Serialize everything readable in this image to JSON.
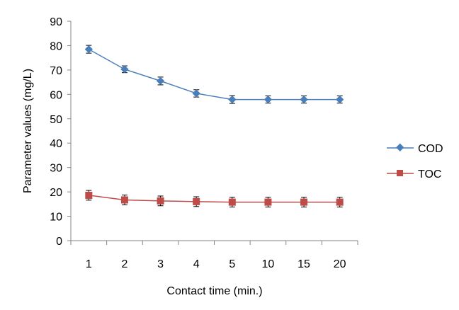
{
  "chart_data": {
    "type": "line",
    "categories": [
      "1",
      "2",
      "3",
      "4",
      "5",
      "10",
      "15",
      "20"
    ],
    "series": [
      {
        "name": "COD",
        "values": [
          78.5,
          70.3,
          65.5,
          60.4,
          57.9,
          57.9,
          57.9,
          57.9
        ],
        "error": [
          1.6,
          1.4,
          1.6,
          1.5,
          1.6,
          1.5,
          1.5,
          1.5
        ],
        "color": "#4a7ebb",
        "marker": "diamond"
      },
      {
        "name": "TOC",
        "values": [
          18.6,
          16.7,
          16.3,
          16.0,
          15.8,
          15.8,
          15.8,
          15.8
        ],
        "error": [
          2.0,
          2.0,
          2.0,
          2.0,
          2.0,
          2.0,
          2.0,
          2.0
        ],
        "color": "#be4b48",
        "marker": "square"
      }
    ],
    "xlabel": "Contact time (min.)",
    "ylabel": "Parameter values (mg/L)",
    "ylim": [
      0,
      90
    ],
    "yticks": [
      0,
      10,
      20,
      30,
      40,
      50,
      60,
      70,
      80,
      90
    ],
    "grid": false,
    "legend": "right"
  }
}
